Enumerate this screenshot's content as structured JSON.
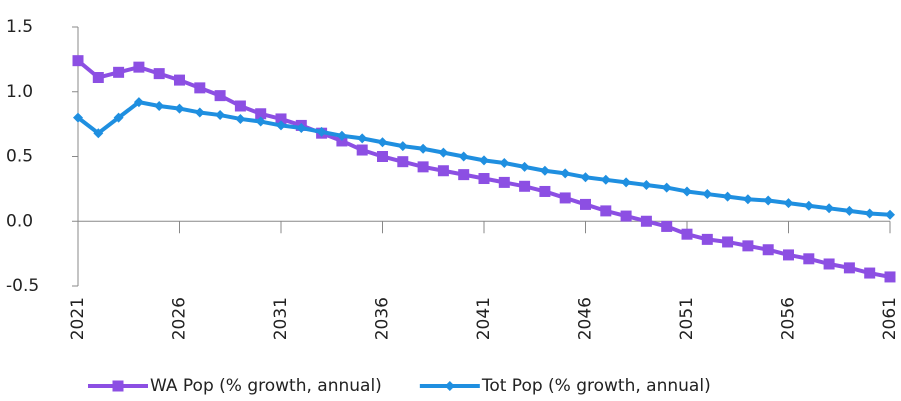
{
  "chart_data": {
    "type": "line",
    "x": [
      2021,
      2022,
      2023,
      2024,
      2025,
      2026,
      2027,
      2028,
      2029,
      2030,
      2031,
      2032,
      2033,
      2034,
      2035,
      2036,
      2037,
      2038,
      2039,
      2040,
      2041,
      2042,
      2043,
      2044,
      2045,
      2046,
      2047,
      2048,
      2049,
      2050,
      2051,
      2052,
      2053,
      2054,
      2055,
      2056,
      2057,
      2058,
      2059,
      2060,
      2061
    ],
    "series": [
      {
        "name": "WA Pop (% growth, annual)",
        "color": "#8c4fe3",
        "marker": "square",
        "values": [
          1.24,
          1.11,
          1.15,
          1.19,
          1.14,
          1.09,
          1.03,
          0.97,
          0.89,
          0.83,
          0.79,
          0.74,
          0.68,
          0.62,
          0.55,
          0.5,
          0.46,
          0.42,
          0.39,
          0.36,
          0.33,
          0.3,
          0.27,
          0.23,
          0.18,
          0.13,
          0.08,
          0.04,
          0.0,
          -0.04,
          -0.1,
          -0.14,
          -0.16,
          -0.19,
          -0.22,
          -0.26,
          -0.29,
          -0.33,
          -0.36,
          -0.4,
          -0.43
        ]
      },
      {
        "name": "Tot Pop (% growth, annual)",
        "color": "#1f8fe0",
        "marker": "diamond",
        "values": [
          0.8,
          0.68,
          0.8,
          0.92,
          0.89,
          0.87,
          0.84,
          0.82,
          0.79,
          0.77,
          0.74,
          0.72,
          0.69,
          0.66,
          0.64,
          0.61,
          0.58,
          0.56,
          0.53,
          0.5,
          0.47,
          0.45,
          0.42,
          0.39,
          0.37,
          0.34,
          0.32,
          0.3,
          0.28,
          0.26,
          0.23,
          0.21,
          0.19,
          0.17,
          0.16,
          0.14,
          0.12,
          0.1,
          0.08,
          0.06,
          0.05
        ]
      }
    ],
    "xlim": [
      2021,
      2061
    ],
    "xticks": [
      2021,
      2026,
      2031,
      2036,
      2041,
      2046,
      2051,
      2056,
      2061
    ],
    "ylim": [
      -0.5,
      1.5
    ],
    "yticks": [
      -0.5,
      {
        "value": 0,
        "label": "0.0"
      },
      0.5,
      {
        "value": 1,
        "label": "1.0"
      },
      1.5
    ],
    "legend": "bottom"
  }
}
